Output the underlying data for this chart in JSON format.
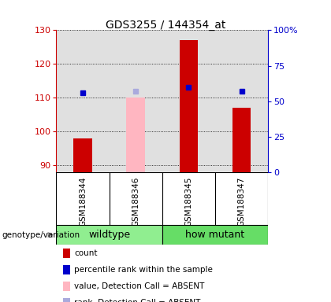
{
  "title": "GDS3255 / 144354_at",
  "samples": [
    "GSM188344",
    "GSM188346",
    "GSM188345",
    "GSM188347"
  ],
  "ylim_left": [
    88,
    130
  ],
  "ylim_right": [
    0,
    100
  ],
  "yticks_left": [
    90,
    100,
    110,
    120,
    130
  ],
  "yticks_right": [
    0,
    25,
    50,
    75,
    100
  ],
  "ytick_labels_right": [
    "0",
    "25",
    "50",
    "75",
    "100%"
  ],
  "count_values": [
    98,
    null,
    127,
    107
  ],
  "count_absent_values": [
    null,
    110,
    null,
    null
  ],
  "percentile_values": [
    111.5,
    null,
    113,
    112
  ],
  "percentile_absent_values": [
    null,
    112,
    null,
    null
  ],
  "bar_bottom": 88,
  "count_color": "#CC0000",
  "count_absent_color": "#FFB6C1",
  "percentile_color": "#0000CC",
  "percentile_absent_color": "#AAAADD",
  "bar_width": 0.35,
  "left_axis_color": "#CC0000",
  "right_axis_color": "#0000CC",
  "plot_bg": "#E0E0E0",
  "grid_color": "black",
  "sample_bg": "#D3D3D3",
  "legend_items": [
    {
      "label": "count",
      "color": "#CC0000"
    },
    {
      "label": "percentile rank within the sample",
      "color": "#0000CC"
    },
    {
      "label": "value, Detection Call = ABSENT",
      "color": "#FFB6C1"
    },
    {
      "label": "rank, Detection Call = ABSENT",
      "color": "#AAAADD"
    }
  ],
  "genotype_label": "genotype/variation",
  "marker_size": 5,
  "wildtype_color": "#90EE90",
  "mutant_color": "#66DD66",
  "title_fontsize": 10,
  "axis_fontsize": 8,
  "legend_fontsize": 7.5,
  "sample_fontsize": 7.5
}
